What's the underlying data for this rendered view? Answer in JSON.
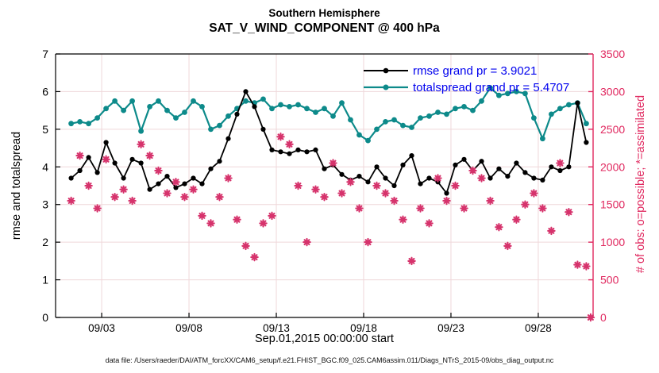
{
  "title": {
    "line1": "Southern Hemisphere",
    "line2": "SAT_V_WIND_COMPONENT @ 400 hPa"
  },
  "footer": "data file: /Users/raeder/DAI/ATM_forcXX/CAM6_setup/f.e21.FHIST_BGC.f09_025.CAM6assim.011/Diags_NTrS_2015-09/obs_diag_output.nc",
  "colors": {
    "rmse": "#000000",
    "spread": "#0d8a8a",
    "obs_axis": "#e0285f",
    "obs_marker": "#d6336c",
    "legend_text": "#0000ee",
    "grid": "#efd7da",
    "axis_left": "#000000"
  },
  "legend": [
    {
      "label": "rmse grand pr = 3.9021",
      "series": "rmse"
    },
    {
      "label": "totalspread grand pr = 5.4707",
      "series": "totalspread"
    }
  ],
  "chart_data": {
    "type": "line",
    "title": "Southern Hemisphere — SAT_V_WIND_COMPONENT @ 400 hPa",
    "xlabel": "Sep.01,2015 00:00:00 start",
    "ylabel_left": "rmse and totalspread",
    "ylabel_right": "# of obs: o=possible; *=assimilated",
    "grid": true,
    "legend_position": "top-right-inside",
    "x_axis": {
      "min_day": -0.64,
      "max_day": 30.14,
      "start_date": "2015-09-01T00:00:00",
      "ticks": [
        {
          "day": 2,
          "label": "09/03"
        },
        {
          "day": 7,
          "label": "09/08"
        },
        {
          "day": 12,
          "label": "09/13"
        },
        {
          "day": 17,
          "label": "09/18"
        },
        {
          "day": 22,
          "label": "09/23"
        },
        {
          "day": 27,
          "label": "09/28"
        }
      ]
    },
    "y_left": {
      "min": 0,
      "max": 7,
      "ticks": [
        0,
        1,
        2,
        3,
        4,
        5,
        6,
        7
      ]
    },
    "y_right": {
      "min": 0,
      "max": 3500,
      "ticks": [
        0,
        500,
        1000,
        1500,
        2000,
        2500,
        3000,
        3500
      ]
    },
    "x_start_day": 0.25,
    "x_step_days": 0.5,
    "series": [
      {
        "name": "rmse",
        "axis": "left",
        "color_key": "rmse",
        "marker": "circle",
        "grand_pr": 3.9021,
        "values": [
          3.7,
          3.9,
          4.25,
          3.85,
          4.65,
          4.1,
          3.7,
          4.2,
          4.1,
          3.4,
          3.55,
          3.75,
          3.45,
          3.55,
          3.7,
          3.55,
          3.95,
          4.15,
          4.75,
          5.4,
          6.0,
          5.6,
          5.0,
          4.45,
          4.4,
          4.35,
          4.45,
          4.4,
          4.45,
          3.95,
          4.05,
          3.8,
          3.65,
          3.75,
          3.6,
          4.0,
          3.7,
          3.5,
          4.05,
          4.3,
          3.55,
          3.7,
          3.6,
          3.3,
          4.05,
          4.2,
          3.9,
          4.15,
          3.7,
          3.95,
          3.75,
          4.1,
          3.85,
          3.7,
          3.65,
          4.0,
          3.9,
          4.0,
          5.7,
          4.65
        ]
      },
      {
        "name": "totalspread",
        "axis": "left",
        "color_key": "spread",
        "marker": "circle",
        "grand_pr": 5.4707,
        "values": [
          5.15,
          5.2,
          5.15,
          5.3,
          5.55,
          5.75,
          5.5,
          5.75,
          4.95,
          5.6,
          5.75,
          5.5,
          5.3,
          5.45,
          5.75,
          5.6,
          5.0,
          5.1,
          5.35,
          5.55,
          5.75,
          5.7,
          5.8,
          5.55,
          5.65,
          5.6,
          5.65,
          5.55,
          5.45,
          5.55,
          5.35,
          5.7,
          5.25,
          4.85,
          4.7,
          5.0,
          5.2,
          5.25,
          5.1,
          5.05,
          5.3,
          5.35,
          5.45,
          5.4,
          5.55,
          5.6,
          5.5,
          5.75,
          6.1,
          5.9,
          5.95,
          6.0,
          5.95,
          5.3,
          4.75,
          5.4,
          5.55,
          5.65,
          5.7,
          5.15
        ]
      },
      {
        "name": "observations_assimilated",
        "axis": "right",
        "color_key": "obs_marker",
        "marker": "asterisk",
        "values": [
          1550,
          2150,
          1750,
          1450,
          2100,
          1600,
          1700,
          1550,
          2300,
          2150,
          1950,
          1650,
          1800,
          1600,
          1700,
          1350,
          1250,
          1600,
          1850,
          1300,
          950,
          800,
          1250,
          1350,
          2400,
          2300,
          1750,
          1000,
          1700,
          1600,
          2050,
          1650,
          1800,
          1450,
          1000,
          1750,
          1650,
          1550,
          1300,
          750,
          1450,
          1250,
          1850,
          1550,
          1750,
          1450,
          1950,
          1850,
          1550,
          1200,
          950,
          1300,
          1500,
          1650,
          1450,
          1150,
          2050,
          1400,
          700,
          680
        ],
        "extra_points": [
          {
            "day": 30.0,
            "value": 0
          }
        ]
      }
    ]
  }
}
